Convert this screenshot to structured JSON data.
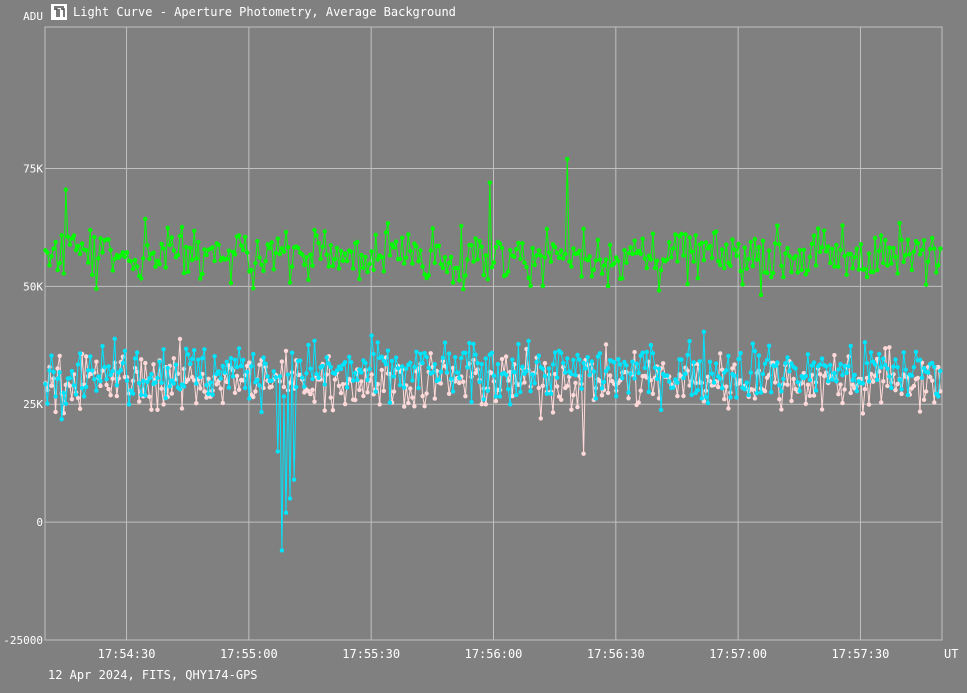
{
  "window": {
    "title": "Light Curve - Aperture Photometry, Average Background",
    "footer": "12 Apr 2024, FITS, QHY174-GPS",
    "icon": "light-curve-icon"
  },
  "colors": {
    "background": "#808080",
    "grid": "#c0c0c0",
    "axis_text": "#ffffff",
    "target": "#00ff00",
    "comparison_1": "#00e5ff",
    "comparison_2": "#ffd9d9"
  },
  "chart_data": {
    "type": "line",
    "ylabel": "ADU",
    "xlabel": "UT",
    "yticks": [
      "75K",
      "50K",
      "25K",
      "0",
      "-25000"
    ],
    "ytick_values": [
      75000,
      50000,
      25000,
      0,
      -25000
    ],
    "ylim": [
      -25000,
      105000
    ],
    "xticks": [
      "17:54:30",
      "17:55:00",
      "17:55:30",
      "17:56:00",
      "17:56:30",
      "17:57:00",
      "17:57:30"
    ],
    "xlim": [
      "17:54:10",
      "17:57:50"
    ],
    "grid": true,
    "series": [
      {
        "color": "#00ff00",
        "mean": 56500,
        "spread": 4500,
        "events": [
          {
            "time": "17:56:18",
            "value": 77000
          },
          {
            "time": "17:55:59",
            "value": 72000
          },
          {
            "time": "17:54:15",
            "value": 70500
          }
        ]
      },
      {
        "color": "#00e5ff",
        "mean": 32000,
        "spread": 5000,
        "events": [
          {
            "time": "17:55:07",
            "value": 15000
          },
          {
            "time": "17:55:08",
            "value": -6000
          },
          {
            "time": "17:55:09",
            "value": 2000
          },
          {
            "time": "17:55:10",
            "value": 5000
          },
          {
            "time": "17:55:11",
            "value": 9000
          }
        ]
      },
      {
        "color": "#ffd9d9",
        "mean": 30000,
        "spread": 4800,
        "events": [
          {
            "time": "17:56:22",
            "value": 14500
          }
        ]
      }
    ]
  }
}
